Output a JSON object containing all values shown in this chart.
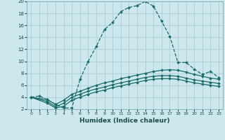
{
  "xlabel": "Humidex (Indice chaleur)",
  "bg_color": "#cce8ec",
  "grid_color": "#aacdd4",
  "line_color": "#1a6b6b",
  "xlim": [
    -0.5,
    23.5
  ],
  "ylim": [
    2,
    20
  ],
  "yticks": [
    2,
    4,
    6,
    8,
    10,
    12,
    14,
    16,
    18,
    20
  ],
  "xtick_labels": [
    "0",
    "1",
    "2",
    "3",
    "4",
    "5",
    "6",
    "7",
    "8",
    "9",
    "10",
    "11",
    "12",
    "13",
    "14",
    "15",
    "16",
    "17",
    "18",
    "19",
    "20",
    "21",
    "22",
    "23"
  ],
  "line1_x": [
    0,
    1,
    2,
    3,
    4,
    5,
    6,
    7,
    8,
    9,
    10,
    11,
    12,
    13,
    14,
    15,
    16,
    17,
    18,
    19,
    20,
    21,
    22,
    23
  ],
  "line1_y": [
    4.0,
    4.2,
    3.6,
    2.8,
    2.2,
    2.2,
    7.0,
    10.0,
    12.5,
    15.3,
    16.5,
    18.3,
    19.0,
    19.3,
    20.0,
    19.2,
    16.7,
    14.2,
    9.8,
    9.8,
    8.7,
    7.8,
    8.3,
    7.3
  ],
  "line2_x": [
    0,
    2,
    3,
    4,
    5,
    6,
    7,
    8,
    9,
    10,
    11,
    12,
    13,
    14,
    15,
    16,
    17,
    18,
    19,
    20,
    21,
    22,
    23
  ],
  "line2_y": [
    4.0,
    3.6,
    2.8,
    3.5,
    4.5,
    5.0,
    5.5,
    6.0,
    6.4,
    6.7,
    7.1,
    7.4,
    7.7,
    8.0,
    8.3,
    8.5,
    8.6,
    8.5,
    8.2,
    7.8,
    7.5,
    7.2,
    7.0
  ],
  "line3_x": [
    0,
    2,
    3,
    4,
    5,
    6,
    7,
    8,
    9,
    10,
    11,
    12,
    13,
    14,
    15,
    16,
    17,
    18,
    19,
    20,
    21,
    22,
    23
  ],
  "line3_y": [
    4.0,
    3.3,
    2.4,
    3.0,
    4.0,
    4.5,
    5.0,
    5.4,
    5.7,
    6.1,
    6.4,
    6.7,
    7.0,
    7.3,
    7.5,
    7.6,
    7.6,
    7.5,
    7.2,
    6.9,
    6.7,
    6.5,
    6.3
  ],
  "line4_x": [
    0,
    2,
    3,
    4,
    5,
    6,
    7,
    8,
    9,
    10,
    11,
    12,
    13,
    14,
    15,
    16,
    17,
    18,
    19,
    20,
    21,
    22,
    23
  ],
  "line4_y": [
    4.0,
    3.0,
    2.2,
    2.5,
    3.5,
    4.0,
    4.5,
    4.9,
    5.2,
    5.6,
    5.9,
    6.2,
    6.5,
    6.8,
    7.0,
    7.1,
    7.1,
    7.0,
    6.7,
    6.4,
    6.2,
    6.0,
    5.8
  ]
}
